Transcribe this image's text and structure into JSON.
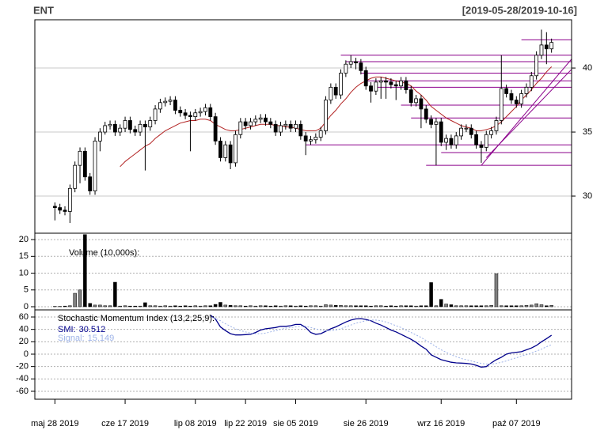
{
  "chart_data": [
    {
      "type": "candlestick",
      "title": "ENT",
      "subtitle": "[2019-05-28/2019-10-16]",
      "xlim": [
        -4,
        103
      ],
      "ylim": [
        27.1,
        43.77
      ],
      "yticks": [
        30,
        35,
        40
      ],
      "y_axis_side": "right",
      "grid": "solid",
      "up_color": "#ffffff",
      "down_color": "#000000",
      "open": [
        29.2,
        29.1,
        28.9,
        28.8,
        30.6,
        32.4,
        33.5,
        31.5,
        30.4,
        34.3,
        35.0,
        35.5,
        35.6,
        35.0,
        35.3,
        35.9,
        35.2,
        35.0,
        35.6,
        35.4,
        35.9,
        36.8,
        37.3,
        37.4,
        37.5,
        36.7,
        36.5,
        36.3,
        36.2,
        36.5,
        36.6,
        36.9,
        36.2,
        34.3,
        33.0,
        34.0,
        32.6,
        34.8,
        35.8,
        35.5,
        35.8,
        36.0,
        36.1,
        35.8,
        35.6,
        35.0,
        35.5,
        35.6,
        35.3,
        35.6,
        34.7,
        34.3,
        34.4,
        34.6,
        35.1,
        37.5,
        38.5,
        37.9,
        39.6,
        40.3,
        40.5,
        40.4,
        39.8,
        38.6,
        38.2,
        38.9,
        39.0,
        38.9,
        38.7,
        38.6,
        39.0,
        38.3,
        37.3,
        37.6,
        36.8,
        36.0,
        35.6,
        35.8,
        34.2,
        34.5,
        34.0,
        34.7,
        35.3,
        35.3,
        34.8,
        34.0,
        33.8,
        34.8,
        35.1,
        35.9,
        38.4,
        38.0,
        37.5,
        37.2,
        38.0,
        38.5,
        39.4,
        41.0,
        41.8,
        41.5
      ],
      "high": [
        29.5,
        29.4,
        29.2,
        30.9,
        32.7,
        33.8,
        33.8,
        31.8,
        34.6,
        35.3,
        35.8,
        35.9,
        35.9,
        35.6,
        36.2,
        36.2,
        35.5,
        35.9,
        35.9,
        36.2,
        37.1,
        37.6,
        37.7,
        37.8,
        37.8,
        37.0,
        36.8,
        36.6,
        36.8,
        36.9,
        37.2,
        37.2,
        36.5,
        34.6,
        34.3,
        34.3,
        35.1,
        36.1,
        36.1,
        36.1,
        36.3,
        36.4,
        36.4,
        36.1,
        35.9,
        35.8,
        35.9,
        35.9,
        35.9,
        35.9,
        35.0,
        34.7,
        34.9,
        35.4,
        37.8,
        38.8,
        38.8,
        39.9,
        40.6,
        41.0,
        40.8,
        40.7,
        40.1,
        38.9,
        39.2,
        39.3,
        39.3,
        39.2,
        39.0,
        39.3,
        39.3,
        38.6,
        37.9,
        37.9,
        37.1,
        36.3,
        36.1,
        36.1,
        34.8,
        34.8,
        35.0,
        35.6,
        35.6,
        35.6,
        35.1,
        34.3,
        35.1,
        35.4,
        36.2,
        41.0,
        38.7,
        38.3,
        37.8,
        38.3,
        38.8,
        39.7,
        41.3,
        43.0,
        42.8,
        42.3
      ],
      "low": [
        28.1,
        28.6,
        28.5,
        27.9,
        30.3,
        31.0,
        31.2,
        30.1,
        30.1,
        33.5,
        34.8,
        35.2,
        34.7,
        34.7,
        35.0,
        34.9,
        34.7,
        34.7,
        32.0,
        35.1,
        35.6,
        36.5,
        37.0,
        37.1,
        36.4,
        36.2,
        36.0,
        33.5,
        35.9,
        36.2,
        36.3,
        35.9,
        34.0,
        32.7,
        32.7,
        32.1,
        32.3,
        34.5,
        35.2,
        35.2,
        35.5,
        35.7,
        35.5,
        35.3,
        34.7,
        34.7,
        35.2,
        35.0,
        35.0,
        34.4,
        33.2,
        34.0,
        34.1,
        34.3,
        34.8,
        37.2,
        37.6,
        37.6,
        39.3,
        40.0,
        39.9,
        39.5,
        38.3,
        37.3,
        37.9,
        37.6,
        37.6,
        38.4,
        37.5,
        38.3,
        38.0,
        37.0,
        37.0,
        35.3,
        35.7,
        35.3,
        32.4,
        33.9,
        33.6,
        33.7,
        33.7,
        34.4,
        35.0,
        34.5,
        33.7,
        32.6,
        33.5,
        34.5,
        34.8,
        35.6,
        37.7,
        37.2,
        36.9,
        36.9,
        37.7,
        38.2,
        39.1,
        40.7,
        40.3,
        41.2
      ],
      "close": [
        29.1,
        28.9,
        28.8,
        30.6,
        32.4,
        33.5,
        31.5,
        30.4,
        34.3,
        35.0,
        35.5,
        35.6,
        35.0,
        35.3,
        35.9,
        35.2,
        35.0,
        35.6,
        35.4,
        35.9,
        36.8,
        37.3,
        37.4,
        37.5,
        36.7,
        36.5,
        36.3,
        36.2,
        36.5,
        36.6,
        36.9,
        36.2,
        34.3,
        33.0,
        34.0,
        32.6,
        34.8,
        35.8,
        35.5,
        35.8,
        36.0,
        36.1,
        35.8,
        35.6,
        35.0,
        35.5,
        35.6,
        35.3,
        35.6,
        34.7,
        34.3,
        34.4,
        34.6,
        35.1,
        37.5,
        38.5,
        37.9,
        39.6,
        40.3,
        40.5,
        40.4,
        39.8,
        38.6,
        38.2,
        38.9,
        39.0,
        38.9,
        38.7,
        38.6,
        39.0,
        38.3,
        37.3,
        37.6,
        36.8,
        36.0,
        35.6,
        35.8,
        34.2,
        34.5,
        34.0,
        34.7,
        35.3,
        35.3,
        34.8,
        34.0,
        33.8,
        34.8,
        35.1,
        35.9,
        38.4,
        38.0,
        37.5,
        37.2,
        38.0,
        38.5,
        39.4,
        41.0,
        41.8,
        41.5,
        42.0
      ],
      "ma": {
        "color": "#b22222",
        "values": [
          null,
          null,
          null,
          null,
          null,
          null,
          null,
          null,
          null,
          null,
          null,
          null,
          null,
          32.3,
          32.7,
          33.0,
          33.3,
          33.6,
          33.9,
          34.1,
          34.5,
          34.8,
          35.1,
          35.3,
          35.5,
          35.7,
          35.8,
          35.9,
          35.9,
          36.0,
          36.0,
          35.9,
          35.6,
          35.4,
          35.2,
          35.1,
          35.1,
          35.2,
          35.3,
          35.4,
          35.5,
          35.6,
          35.6,
          35.6,
          35.5,
          35.5,
          35.4,
          35.4,
          35.3,
          35.2,
          35.1,
          35.1,
          35.1,
          35.3,
          35.8,
          36.3,
          36.7,
          37.2,
          37.6,
          38.1,
          38.5,
          38.8,
          39.0,
          39.2,
          39.3,
          39.3,
          39.2,
          39.1,
          39.0,
          38.9,
          38.8,
          38.6,
          38.2,
          37.9,
          37.5,
          37.0,
          36.7,
          36.4,
          36.1,
          35.9,
          35.7,
          35.5,
          35.4,
          35.3,
          35.1,
          35.1,
          35.2,
          35.3,
          35.5,
          35.8,
          36.2,
          36.6,
          37.0,
          37.5,
          37.9,
          38.3,
          38.8,
          39.2,
          39.7,
          40.1
        ]
      },
      "level_color": "#8b008b",
      "levels": [
        {
          "value": 42.2,
          "start": 93
        },
        {
          "value": 41.0,
          "start": 57
        },
        {
          "value": 40.5,
          "start": 58
        },
        {
          "value": 39.6,
          "start": 61
        },
        {
          "value": 39.0,
          "start": 62
        },
        {
          "value": 38.5,
          "start": 64
        },
        {
          "value": 37.1,
          "start": 69
        },
        {
          "value": 36.1,
          "start": 71
        },
        {
          "value": 34.0,
          "start": 50
        },
        {
          "value": 33.4,
          "start": 77
        },
        {
          "value": 32.4,
          "start": 74
        }
      ],
      "trendlines": [
        {
          "x": [
            85,
            103
          ],
          "y": [
            32.4,
            40.7
          ]
        },
        {
          "x": [
            86,
            103
          ],
          "y": [
            33.0,
            39.9
          ]
        }
      ]
    },
    {
      "type": "bar",
      "label": "Volume (10,000s):",
      "xlim": [
        -4,
        103
      ],
      "ylim": [
        -0.94,
        21.9
      ],
      "yticks": [
        0,
        5,
        10,
        15,
        20
      ],
      "y_axis_side": "left",
      "grid": "dotted",
      "up_color": "#808080",
      "down_color": "#000000",
      "values": [
        0.1,
        0.1,
        0.2,
        0.3,
        4.0,
        5.0,
        21.5,
        1.0,
        0.5,
        0.5,
        0.3,
        0.3,
        7.3,
        0.2,
        0.3,
        0.2,
        0.2,
        0.2,
        1.2,
        0.3,
        0.3,
        0.2,
        0.3,
        0.2,
        0.3,
        0.2,
        0.3,
        0.2,
        0.3,
        0.2,
        0.3,
        0.3,
        0.7,
        1.3,
        0.5,
        0.4,
        0.3,
        0.3,
        0.2,
        0.3,
        0.2,
        0.3,
        0.3,
        0.2,
        0.3,
        0.2,
        0.3,
        0.3,
        0.2,
        0.3,
        0.2,
        0.3,
        0.3,
        0.2,
        0.6,
        0.5,
        0.4,
        0.4,
        0.3,
        0.3,
        0.3,
        0.3,
        0.3,
        0.2,
        0.3,
        0.3,
        0.2,
        0.3,
        0.2,
        0.3,
        0.3,
        0.3,
        0.2,
        0.3,
        0.3,
        7.2,
        0.3,
        2.2,
        0.8,
        0.6,
        0.3,
        0.3,
        0.3,
        0.3,
        0.3,
        0.3,
        0.3,
        0.4,
        9.8,
        0.3,
        0.3,
        0.3,
        0.3,
        0.3,
        0.4,
        0.5,
        0.9,
        0.6,
        0.3,
        0.4
      ]
    },
    {
      "type": "line",
      "label": "Stochastic Momentum Index (13,2,25,9):",
      "xlim": [
        -4,
        103
      ],
      "ylim": [
        -72.8,
        71.5
      ],
      "yticks": [
        -60,
        -40,
        -20,
        0,
        20,
        40,
        60
      ],
      "y_axis_side": "left",
      "grid": "dotted",
      "xticks": [
        {
          "value": 0,
          "label": "maj 28 2019"
        },
        {
          "value": 14,
          "label": "cze 17 2019"
        },
        {
          "value": 28,
          "label": "lip 08 2019"
        },
        {
          "value": 38,
          "label": "lip 22 2019"
        },
        {
          "value": 48,
          "label": "sie 05 2019"
        },
        {
          "value": 62,
          "label": "sie 26 2019"
        },
        {
          "value": 77,
          "label": "wrz 16 2019"
        },
        {
          "value": 92,
          "label": "paź 07 2019"
        }
      ],
      "series": [
        {
          "name": "SMI:",
          "color": "#00008b",
          "dashed": false,
          "values": [
            null,
            null,
            null,
            null,
            null,
            null,
            null,
            null,
            null,
            null,
            null,
            null,
            null,
            null,
            null,
            null,
            null,
            null,
            null,
            null,
            null,
            null,
            null,
            null,
            null,
            null,
            null,
            null,
            null,
            null,
            null,
            63,
            57,
            44,
            38,
            33,
            31,
            31,
            31.5,
            32,
            35,
            39,
            41,
            42,
            43,
            45,
            45,
            46,
            48,
            48,
            43,
            35,
            32,
            33,
            37,
            41,
            44,
            48,
            52,
            55,
            57,
            57.5,
            56,
            54,
            50,
            47,
            43,
            39,
            36,
            32,
            28,
            24,
            19,
            13,
            8,
            -1,
            -5,
            -9,
            -11,
            -13,
            -14,
            -14.5,
            -15,
            -16,
            -18,
            -21,
            -20,
            -14,
            -9,
            -5,
            0,
            2,
            3,
            4,
            7,
            10,
            14,
            20,
            25,
            30.512
          ]
        },
        {
          "name": "Signal:",
          "color": "#9fb4e8",
          "dashed": true,
          "values": [
            null,
            null,
            null,
            null,
            null,
            null,
            null,
            null,
            null,
            null,
            null,
            null,
            null,
            null,
            null,
            null,
            null,
            null,
            null,
            null,
            null,
            null,
            null,
            null,
            null,
            null,
            null,
            null,
            null,
            null,
            null,
            60,
            58,
            54,
            49,
            45,
            41,
            38,
            36,
            34,
            33,
            33,
            34,
            36,
            38,
            40,
            42,
            43,
            44,
            45,
            45,
            43,
            41,
            39,
            38,
            38,
            39,
            41,
            44,
            47,
            50,
            52,
            54,
            55,
            55,
            54,
            52,
            49,
            46,
            43,
            39,
            35,
            31,
            27,
            22,
            17,
            12,
            7,
            3,
            -1,
            -4,
            -7,
            -9,
            -11,
            -13,
            -15,
            -16,
            -16,
            -15,
            -13,
            -11,
            -8,
            -6,
            -3,
            -1,
            2,
            5,
            8,
            12,
            15.149
          ]
        }
      ]
    }
  ]
}
